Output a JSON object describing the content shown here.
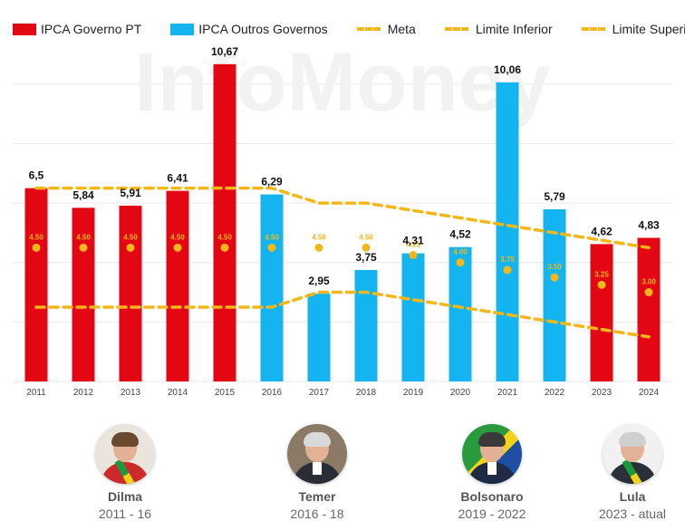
{
  "legend": [
    {
      "label": "IPCA Governo PT",
      "kind": "bar",
      "color": "#e30613"
    },
    {
      "label": "IPCA Outros Governos",
      "kind": "bar",
      "color": "#13b4ef"
    },
    {
      "label": "Meta",
      "kind": "dot",
      "color": "#f3b71a"
    },
    {
      "label": "Limite Inferior",
      "kind": "line",
      "color": "#f3b71a"
    },
    {
      "label": "Limite Superior",
      "kind": "line",
      "color": "#f3b71a"
    }
  ],
  "watermark": "InfoMoney",
  "chart_data": {
    "type": "bar",
    "title": "",
    "xlabel": "",
    "ylabel": "",
    "ylim": [
      0,
      11
    ],
    "categories": [
      "2011",
      "2012",
      "2013",
      "2014",
      "2015",
      "2016",
      "2017",
      "2018",
      "2019",
      "2020",
      "2021",
      "2022",
      "2023",
      "2024"
    ],
    "series": [
      {
        "name": "IPCA",
        "values": [
          6.5,
          5.84,
          5.91,
          6.41,
          10.67,
          6.29,
          2.95,
          3.75,
          4.31,
          4.52,
          10.06,
          5.79,
          4.62,
          4.83
        ],
        "labels": [
          "6,5",
          "5,84",
          "5,91",
          "6,41",
          "10,67",
          "6,29",
          "2,95",
          "3,75",
          "4,31",
          "4,52",
          "10,06",
          "5,79",
          "4,62",
          "4,83"
        ],
        "government": [
          "PT",
          "PT",
          "PT",
          "PT",
          "PT",
          "Outros",
          "Outros",
          "Outros",
          "Outros",
          "Outros",
          "Outros",
          "Outros",
          "PT",
          "PT"
        ]
      },
      {
        "name": "Meta",
        "values": [
          4.5,
          4.5,
          4.5,
          4.5,
          4.5,
          4.5,
          4.5,
          4.5,
          4.25,
          4.0,
          3.75,
          3.5,
          3.25,
          3.0
        ],
        "labels": [
          "4.50",
          "4.50",
          "4.50",
          "4.50",
          "4.50",
          "4.50",
          "4.50",
          "4.50",
          "4.25",
          "4.00",
          "3.75",
          "3.50",
          "3.25",
          "3.00"
        ]
      },
      {
        "name": "Limite Superior",
        "values": [
          6.5,
          6.5,
          6.5,
          6.5,
          6.5,
          6.5,
          6.0,
          6.0,
          5.75,
          5.5,
          5.25,
          5.0,
          4.75,
          4.5
        ]
      },
      {
        "name": "Limite Inferior",
        "values": [
          2.5,
          2.5,
          2.5,
          2.5,
          2.5,
          2.5,
          3.0,
          3.0,
          2.75,
          2.5,
          2.25,
          2.0,
          1.75,
          1.5
        ]
      }
    ],
    "colors": {
      "PT": "#e30613",
      "Outros": "#13b4ef",
      "meta": "#f3b71a",
      "grid": "#e9e9e9"
    },
    "grid": true,
    "legend_position": "top"
  },
  "presidents": [
    {
      "name": "Dilma",
      "term": "2011 - 16"
    },
    {
      "name": "Temer",
      "term": "2016 - 18"
    },
    {
      "name": "Bolsonaro",
      "term": "2019 - 2022"
    },
    {
      "name": "Lula",
      "term": "2023 - atual"
    }
  ]
}
